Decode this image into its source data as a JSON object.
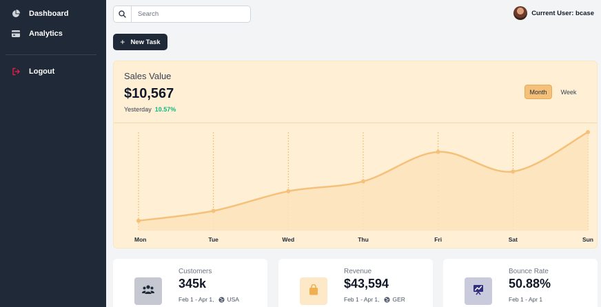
{
  "sidebar": {
    "items": [
      {
        "label": "Dashboard",
        "icon": "pie-chart-icon"
      },
      {
        "label": "Analytics",
        "icon": "credit-card-icon"
      },
      {
        "label": "Logout",
        "icon": "logout-icon"
      }
    ]
  },
  "search": {
    "placeholder": "Search"
  },
  "user": {
    "label": "Current User: bcase"
  },
  "new_task": {
    "label": "New Task"
  },
  "sales": {
    "title": "Sales Value",
    "value": "$10,567",
    "period": "Yesterday",
    "change": "10.57%",
    "toggle": {
      "month": "Month",
      "week": "Week",
      "selected": "Month"
    }
  },
  "chart_data": {
    "type": "area",
    "categories": [
      "Mon",
      "Tue",
      "Wed",
      "Thu",
      "Fri",
      "Sat",
      "Sun"
    ],
    "values": [
      1,
      2,
      4,
      5,
      8,
      6,
      10
    ],
    "ylim": [
      0,
      10
    ],
    "grid": "vertical-dashed",
    "color": "#f5c079"
  },
  "stats": [
    {
      "label": "Customers",
      "value": "345k",
      "period": "Feb 1 - Apr 1,",
      "region": "USA",
      "icon": "users-icon",
      "icon_bg": "#c5c8d0",
      "icon_color": "#1f2937"
    },
    {
      "label": "Revenue",
      "value": "$43,594",
      "period": "Feb 1 - Apr 1,",
      "region": "GER",
      "icon": "shopping-bag-icon",
      "icon_bg": "#fde8c8",
      "icon_color": "#f0b050"
    },
    {
      "label": "Bounce Rate",
      "value": "50.88%",
      "period": "Feb 1 - Apr 1",
      "region": "",
      "icon": "presentation-chart-icon",
      "icon_bg": "#c9cbdc",
      "icon_color": "#312e81"
    }
  ]
}
